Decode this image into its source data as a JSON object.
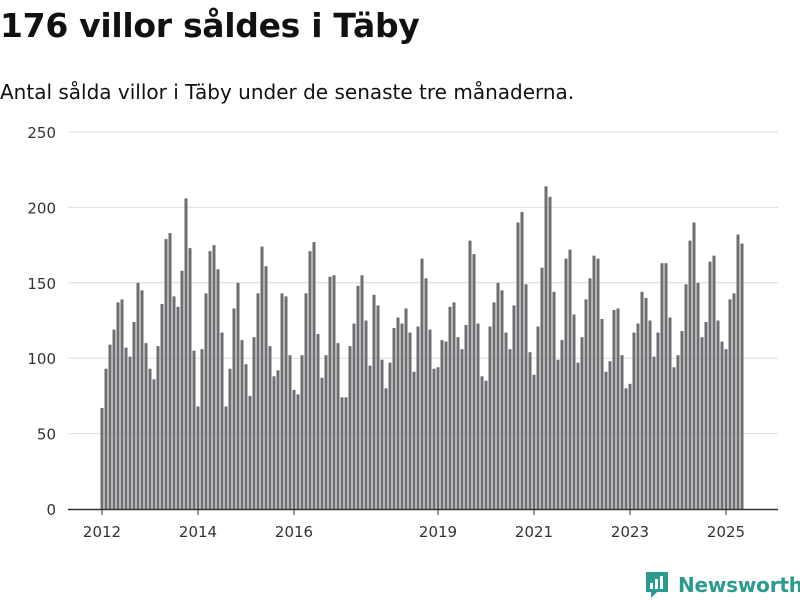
{
  "title": "176 villor såldes i Täby",
  "subtitle": "Antal sålda villor i Täby under de senaste tre månaderna.",
  "brand": {
    "name": "Newsworthy",
    "color": "#2b9a8f"
  },
  "colors": {
    "bar": "#6e6d72",
    "highlight": "#2b9a8f",
    "grid": "#dddddd"
  },
  "chart_data": {
    "type": "bar",
    "title": "176 villor såldes i Täby",
    "subtitle": "Antal sålda villor i Täby under de senaste tre månaderna.",
    "xlabel": "",
    "ylabel": "",
    "ylim": [
      0,
      250
    ],
    "yticks": [
      0,
      50,
      100,
      150,
      200,
      250
    ],
    "xtick_labels": [
      "2012",
      "2014",
      "2016",
      "2019",
      "2021",
      "2023",
      "2025"
    ],
    "grid": true,
    "highlight_index": 161,
    "highlight_label": "176",
    "start": "2012-01",
    "values": [
      67,
      93,
      109,
      119,
      137,
      139,
      107,
      101,
      124,
      150,
      145,
      110,
      93,
      86,
      108,
      136,
      179,
      183,
      141,
      134,
      158,
      206,
      173,
      105,
      68,
      106,
      143,
      171,
      175,
      159,
      117,
      68,
      93,
      133,
      150,
      112,
      96,
      75,
      114,
      143,
      174,
      161,
      108,
      88,
      92,
      143,
      141,
      102,
      79,
      76,
      102,
      143,
      171,
      177,
      116,
      87,
      102,
      154,
      155,
      110,
      74,
      74,
      108,
      123,
      148,
      155,
      125,
      95,
      142,
      135,
      99,
      80,
      97,
      120,
      127,
      123,
      133,
      117,
      91,
      121,
      166,
      153,
      119,
      93,
      94,
      112,
      111,
      134,
      137,
      114,
      106,
      122,
      178,
      169,
      123,
      88,
      85,
      121,
      137,
      150,
      145,
      117,
      106,
      135,
      190,
      197,
      149,
      104,
      89,
      121,
      160,
      214,
      207,
      144,
      99,
      112,
      166,
      172,
      129,
      97,
      114,
      139,
      153,
      168,
      166,
      126,
      91,
      98,
      132,
      133,
      102,
      80,
      83,
      117,
      123,
      144,
      140,
      125,
      101,
      117,
      163,
      163,
      127,
      94,
      102,
      118,
      149,
      178,
      190,
      150,
      114,
      124,
      164,
      168,
      125,
      111,
      106,
      139,
      143,
      182,
      176
    ]
  }
}
